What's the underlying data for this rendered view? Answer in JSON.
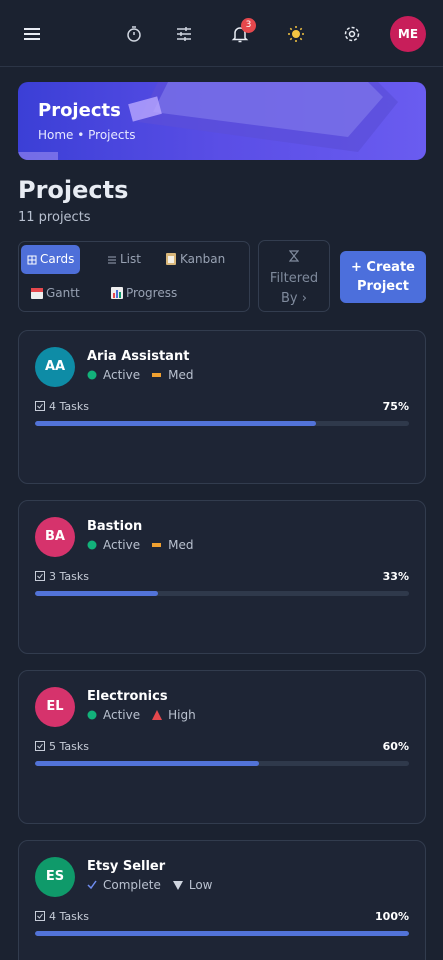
{
  "header": {
    "notification_count": "3",
    "avatar": "ME"
  },
  "banner": {
    "title": "Projects",
    "breadcrumb": "Home • Projects"
  },
  "page": {
    "title": "Projects",
    "subtitle": "11 projects"
  },
  "views": [
    "Cards",
    "List",
    "Kanban",
    "Gantt",
    "Progress"
  ],
  "filter": {
    "label": "Filtered By ›"
  },
  "create_button": "+ Create Project",
  "projects": [
    {
      "initials": "AA",
      "avatar_color": "#0e8ca6",
      "name": "Aria Assistant",
      "status": "Active",
      "priority": "Med",
      "tasks": "4 Tasks",
      "progress": 75,
      "progress_label": "75%"
    },
    {
      "initials": "BA",
      "avatar_color": "#d6336c",
      "name": "Bastion",
      "status": "Active",
      "priority": "Med",
      "tasks": "3 Tasks",
      "progress": 33,
      "progress_label": "33%"
    },
    {
      "initials": "EL",
      "avatar_color": "#d6336c",
      "name": "Electronics",
      "status": "Active",
      "priority": "High",
      "tasks": "5 Tasks",
      "progress": 60,
      "progress_label": "60%"
    },
    {
      "initials": "ES",
      "avatar_color": "#0f9a6a",
      "name": "Etsy Seller",
      "status": "Complete",
      "priority": "Low",
      "tasks": "4 Tasks",
      "progress": 100,
      "progress_label": "100%"
    }
  ]
}
